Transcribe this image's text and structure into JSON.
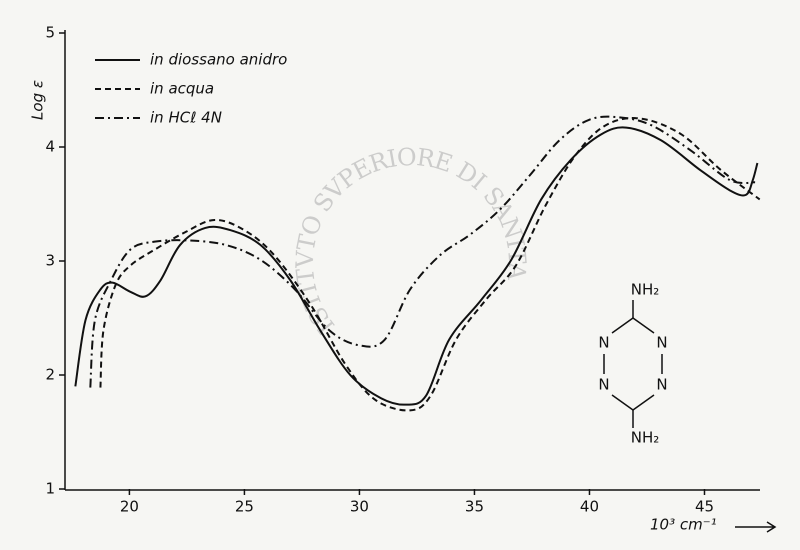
{
  "chart_data": {
    "type": "line",
    "y_label": "Log ε",
    "x_label": "10³ cm⁻¹",
    "xlim": [
      17.2,
      47.5
    ],
    "ylim": [
      1,
      5
    ],
    "xticks": [
      20,
      25,
      30,
      35,
      40,
      45
    ],
    "yticks": [
      1,
      2,
      3,
      4,
      5
    ],
    "legend": "top-left",
    "series": [
      {
        "name": "in diossano anidro",
        "color": "#111111",
        "dash": "solid",
        "x": [
          17.65,
          18.09,
          18.74,
          19.26,
          20.04,
          20.7,
          21.35,
          22.2,
          23.3,
          24.4,
          25.7,
          27.0,
          28.3,
          29.6,
          30.9,
          32.0,
          32.9,
          33.9,
          35.3,
          36.6,
          37.9,
          39.2,
          40.5,
          41.6,
          43.1,
          44.8,
          46.1,
          46.8,
          47.1,
          47.3
        ],
        "values": [
          1.9,
          2.48,
          2.75,
          2.81,
          2.73,
          2.69,
          2.83,
          3.14,
          3.29,
          3.27,
          3.14,
          2.83,
          2.39,
          2.0,
          1.8,
          1.74,
          1.82,
          2.31,
          2.66,
          3.01,
          3.54,
          3.89,
          4.11,
          4.17,
          4.06,
          3.8,
          3.62,
          3.58,
          3.71,
          3.86
        ]
      },
      {
        "name": "in acqua",
        "color": "#111111",
        "dash": "dashed",
        "x": [
          18.74,
          18.87,
          19.4,
          20.04,
          21.1,
          22.4,
          23.7,
          25.0,
          26.3,
          27.9,
          29.4,
          30.7,
          32.2,
          33.1,
          34.2,
          35.5,
          36.8,
          38.1,
          39.4,
          40.7,
          42.2,
          44.0,
          45.7,
          47.4
        ],
        "values": [
          1.89,
          2.39,
          2.79,
          2.96,
          3.1,
          3.25,
          3.36,
          3.27,
          3.05,
          2.61,
          2.09,
          1.78,
          1.69,
          1.82,
          2.31,
          2.66,
          2.96,
          3.49,
          3.93,
          4.19,
          4.25,
          4.11,
          3.8,
          3.54
        ]
      },
      {
        "name": "in HCℓ 4N",
        "color": "#111111",
        "dash": "dashdot",
        "x": [
          18.3,
          18.5,
          19.2,
          20.04,
          21.1,
          22.6,
          24.2,
          25.7,
          27.2,
          28.7,
          30.0,
          31.1,
          32.2,
          33.5,
          34.8,
          36.1,
          37.4,
          38.7,
          40.0,
          41.3,
          42.7,
          44.4,
          46.1,
          47.2
        ],
        "values": [
          1.89,
          2.48,
          2.83,
          3.1,
          3.17,
          3.18,
          3.14,
          3.01,
          2.75,
          2.39,
          2.26,
          2.31,
          2.75,
          3.05,
          3.23,
          3.45,
          3.75,
          4.06,
          4.24,
          4.26,
          4.19,
          3.97,
          3.71,
          3.69
        ]
      }
    ],
    "structure": {
      "top": "NH₂",
      "bottom": "NH₂",
      "atoms": [
        "N",
        "N",
        "N",
        "N"
      ]
    },
    "watermark": "ISTITVTO SVPERIORE DI SANITA"
  }
}
